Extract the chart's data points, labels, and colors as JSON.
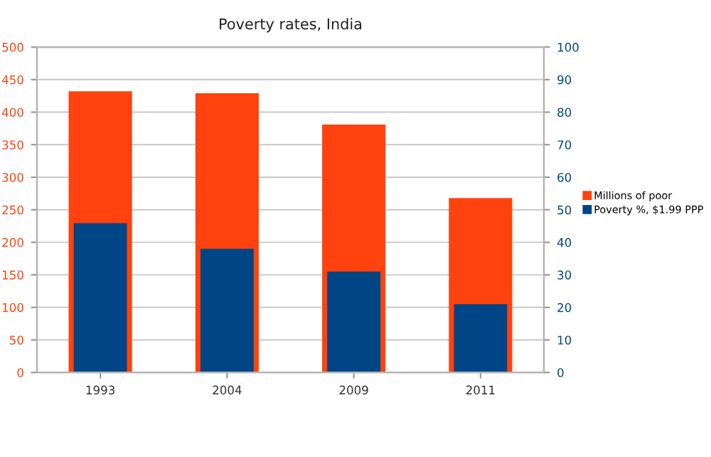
{
  "chart_data": {
    "type": "bar",
    "title": "Poverty rates, India",
    "categories": [
      "1993",
      "2004",
      "2009",
      "2011"
    ],
    "series": [
      {
        "name": "Millions of poor",
        "color": "#ff420e",
        "values": [
          432,
          429,
          381,
          268
        ]
      },
      {
        "name": "Poverty %, $1.99 PPP",
        "color": "#004586",
        "values": [
          45.9,
          38,
          31,
          21
        ],
        "axis": "y2"
      }
    ],
    "ylim": [
      0,
      500
    ],
    "yticks": [
      0,
      50,
      100,
      150,
      200,
      250,
      300,
      350,
      400,
      450,
      500
    ],
    "y2lim": [
      0,
      100
    ],
    "y2ticks": [
      0,
      10,
      20,
      30,
      40,
      50,
      60,
      70,
      80,
      90,
      100
    ],
    "grid": "y",
    "legend": "right"
  }
}
